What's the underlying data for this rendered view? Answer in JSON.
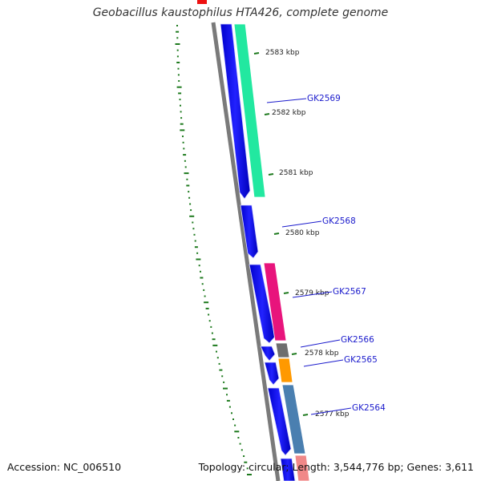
{
  "title": "Geobacillus kaustophilus HTA426, complete genome",
  "accession_text": "Accession: NC_006510",
  "summary_text": "Topology: circular; Length: 3,544,776 bp; Genes: 3,611",
  "colors": {
    "backbone": "#7a7a7a",
    "forward_cds": "#0000ee",
    "gc_skew": "#1e7a1e",
    "label_blue": "#1a1acc"
  },
  "tick_labels": [
    "2583 kbp",
    "2582 kbp",
    "2581 kbp",
    "2580 kbp",
    "2579 kbp",
    "2578 kbp",
    "2577 kbp"
  ],
  "gene_labels": [
    "GK2569",
    "GK2568",
    "GK2567",
    "GK2566",
    "GK2565",
    "GK2564"
  ],
  "cog_colors": [
    "#22e8a0",
    "#e8147c",
    "#6e6e6e",
    "#ff9900",
    "#4a7fb0",
    "#f08888"
  ]
}
